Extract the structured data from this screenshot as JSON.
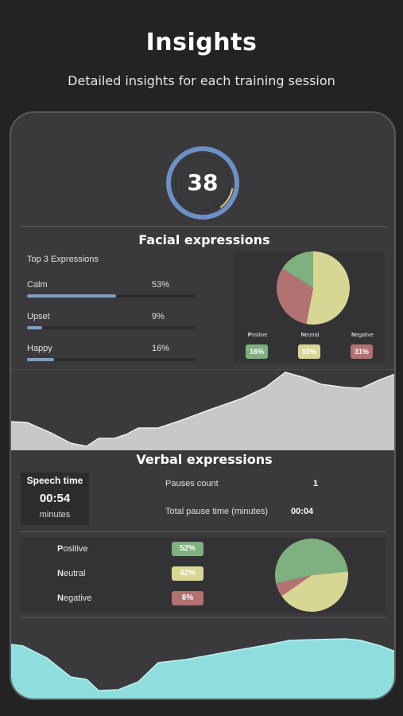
{
  "header": {
    "title": "Insights",
    "subtitle": "Detailed insights for each training session"
  },
  "score": {
    "value": "38",
    "progress": 0.38,
    "ring_color": "#6f90c6",
    "accent_color": "#d8cf7a"
  },
  "facial": {
    "title": "Facial expressions",
    "top_label": "Top 3 Expressions",
    "expressions": [
      {
        "name": "Calm",
        "percent_label": "53%",
        "value": 0.53
      },
      {
        "name": "Upset",
        "percent_label": "9%",
        "value": 0.09
      },
      {
        "name": "Happy",
        "percent_label": "16%",
        "value": 0.16
      }
    ],
    "pie": [
      {
        "label_first": "P",
        "label_rest": "ositive",
        "badge": "16%",
        "value": 16,
        "color": "#7fb07f"
      },
      {
        "label_first": "N",
        "label_rest": "eutral",
        "badge": "53%",
        "value": 53,
        "color": "#d8d695"
      },
      {
        "label_first": "N",
        "label_rest": "egative",
        "badge": "31%",
        "value": 31,
        "color": "#b37272"
      }
    ],
    "trend_color": "#c8c8c8"
  },
  "verbal": {
    "title": "Verbal expressions",
    "speech_time_label": "Speech time",
    "speech_time_value": "00:54",
    "speech_time_unit": "minutes",
    "pauses_count_label": "Pauses count",
    "pauses_count_value": "1",
    "total_pause_label": "Total pause time (minutes)",
    "total_pause_value": "00:04",
    "sentiment": [
      {
        "label_first": "P",
        "label_rest": "ositive",
        "badge": "52%",
        "value": 52,
        "color": "#7fb07f"
      },
      {
        "label_first": "N",
        "label_rest": "eutral",
        "badge": "42%",
        "value": 42,
        "color": "#d8d695"
      },
      {
        "label_first": "N",
        "label_rest": "egative",
        "badge": "6%",
        "value": 6,
        "color": "#b37272"
      }
    ],
    "trend_color": "#8fdede"
  }
}
